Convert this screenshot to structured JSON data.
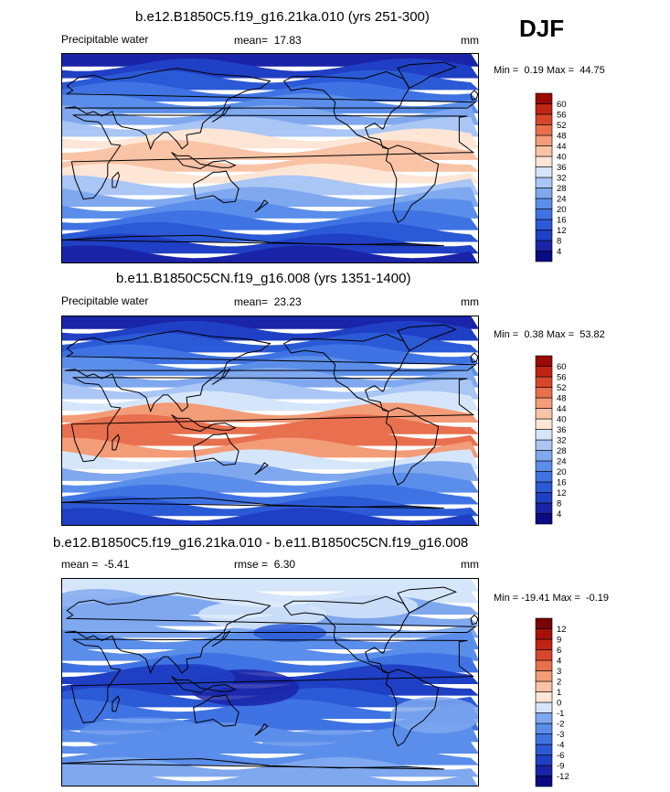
{
  "season": "DJF",
  "chart_data": [
    {
      "type": "heatmap",
      "title": "b.e12.B1850C5.f19_g16.21ka.010 (yrs 251-300)",
      "variable": "Precipitable water",
      "mean_label": "mean=",
      "mean": "17.83",
      "units": "mm",
      "min_label": "Min =",
      "min": "0.19",
      "max_label": "Max =",
      "max": "44.75",
      "levels": [
        "4",
        "8",
        "12",
        "16",
        "20",
        "24",
        "28",
        "32",
        "36",
        "40",
        "44",
        "48",
        "52",
        "56",
        "60"
      ],
      "colors": [
        "#0a0a82",
        "#1a24a8",
        "#1f3fc4",
        "#2b5ad6",
        "#3f73e3",
        "#5a8eea",
        "#7fa8ef",
        "#a9c6f5",
        "#d6e6fa",
        "#fde6d6",
        "#f9c3a6",
        "#f39c78",
        "#e8704e",
        "#d8472c",
        "#c02414",
        "#9a0a06"
      ],
      "band_profile": [
        1,
        2,
        3,
        4,
        5,
        6,
        7,
        9,
        10,
        10,
        9,
        7,
        6,
        5,
        4,
        3,
        2,
        1
      ]
    },
    {
      "type": "heatmap",
      "title": "b.e11.B1850C5CN.f19_g16.008 (yrs 1351-1400)",
      "variable": "Precipitable water",
      "mean_label": "mean=",
      "mean": "23.23",
      "units": "mm",
      "min_label": "Min =",
      "min": "0.38",
      "max_label": "Max =",
      "max": "53.82",
      "levels": [
        "4",
        "8",
        "12",
        "16",
        "20",
        "24",
        "28",
        "32",
        "36",
        "40",
        "44",
        "48",
        "52",
        "56",
        "60"
      ],
      "colors": [
        "#0a0a82",
        "#1a24a8",
        "#1f3fc4",
        "#2b5ad6",
        "#3f73e3",
        "#5a8eea",
        "#7fa8ef",
        "#a9c6f5",
        "#d6e6fa",
        "#fde6d6",
        "#f9c3a6",
        "#f39c78",
        "#e8704e",
        "#d8472c",
        "#c02414",
        "#9a0a06"
      ],
      "band_profile": [
        1,
        2,
        3,
        4,
        5,
        6,
        7,
        8,
        11,
        12,
        12,
        11,
        8,
        6,
        5,
        4,
        3,
        2
      ]
    },
    {
      "type": "heatmap",
      "title": "b.e12.B1850C5.f19_g16.21ka.010 - b.e11.B1850C5CN.f19_g16.008",
      "mean_label": "mean =",
      "mean": "-5.41",
      "rmse_label": "rmse =",
      "rmse": "6.30",
      "units": "mm",
      "min_label": "Min =",
      "min": "-19.41",
      "max_label": "Max =",
      "max": "-0.19",
      "levels": [
        "-12",
        "-9",
        "-6",
        "-4",
        "-3",
        "-2",
        "-1",
        "0",
        "1",
        "2",
        "3",
        "4",
        "6",
        "9",
        "12"
      ],
      "colors": [
        "#0a0a82",
        "#1a24a8",
        "#1f3fc4",
        "#2b5ad6",
        "#3f73e3",
        "#5a8eea",
        "#7fa8ef",
        "#d6e6fa",
        "#fde6d6",
        "#f9c3a6",
        "#f39c78",
        "#e8704e",
        "#d8472c",
        "#c02414",
        "#a8100a",
        "#7a0404"
      ],
      "band_profile": [
        7,
        7,
        6,
        6,
        6,
        5,
        5,
        4,
        2,
        2,
        3,
        4,
        4,
        5,
        5,
        5,
        6,
        6
      ]
    }
  ]
}
